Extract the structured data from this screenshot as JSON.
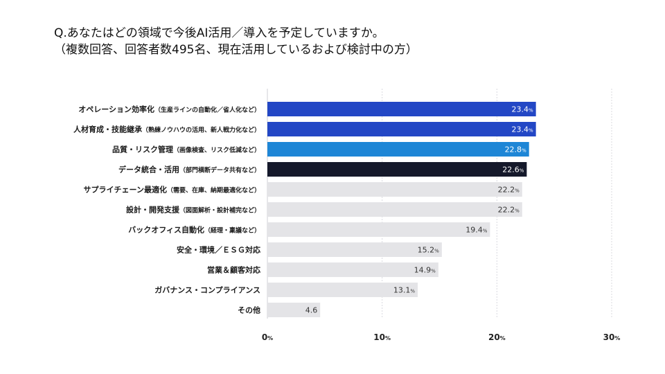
{
  "title": {
    "line1": "Q.あなたはどの領域で今後AI活用／導入を予定していますか。",
    "line2": "（複数回答、回答者数495名、現在活用しているおよび検討中の方）"
  },
  "chart_data": {
    "type": "bar",
    "orientation": "horizontal",
    "title": "Q.あなたはどの領域で今後AI活用／導入を予定していますか。",
    "subtitle": "（複数回答、回答者数495名、現在活用しているおよび検討中の方）",
    "xlabel": "",
    "ylabel": "",
    "xlim": [
      0,
      30
    ],
    "xticks": [
      0,
      10,
      20,
      30
    ],
    "tick_suffix": "%",
    "value_suffix": "%",
    "categories": [
      {
        "main": "オペレーション効率化",
        "sub": "（生産ラインの自動化／省人化など）"
      },
      {
        "main": "人材育成・技能継承",
        "sub": "（熟練ノウハウの活用、新人戦力化など）"
      },
      {
        "main": "品質・リスク管理",
        "sub": "（画像検査、リスク低減など）"
      },
      {
        "main": "データ統合・活用",
        "sub": "（部門横断データ共有など）"
      },
      {
        "main": "サプライチェーン最適化",
        "sub": "（需要、在庫、納期最適化など）"
      },
      {
        "main": "設計・開発支援",
        "sub": "（図面解析・設計補完など）"
      },
      {
        "main": "バックオフィス自動化",
        "sub": "（経理・稟議など）"
      },
      {
        "main": "安全・環境／ＥＳＧ対応",
        "sub": ""
      },
      {
        "main": "営業＆顧客対応",
        "sub": ""
      },
      {
        "main": "ガバナンス・コンプライアンス",
        "sub": ""
      },
      {
        "main": "その他",
        "sub": ""
      }
    ],
    "values": [
      23.4,
      23.4,
      22.8,
      22.6,
      22.2,
      22.2,
      19.4,
      15.2,
      14.9,
      13.1,
      4.6
    ],
    "value_labels": [
      "23.4",
      "23.4",
      "22.8",
      "22.6",
      "22.2",
      "22.2",
      "19.4",
      "15.2",
      "14.9",
      "13.1",
      "4.6"
    ],
    "value_label_has_suffix": [
      true,
      true,
      true,
      true,
      true,
      true,
      true,
      true,
      true,
      true,
      false
    ],
    "bar_colors": [
      "#2347c5",
      "#2347c5",
      "#1e86d6",
      "#15192b",
      "#e4e4e7",
      "#e4e4e7",
      "#e4e4e7",
      "#e4e4e7",
      "#e4e4e7",
      "#e4e4e7",
      "#e4e4e7"
    ],
    "label_colors": [
      "#ffffff",
      "#ffffff",
      "#ffffff",
      "#ffffff",
      "#333333",
      "#333333",
      "#333333",
      "#333333",
      "#333333",
      "#333333",
      "#333333"
    ],
    "grid": true
  }
}
